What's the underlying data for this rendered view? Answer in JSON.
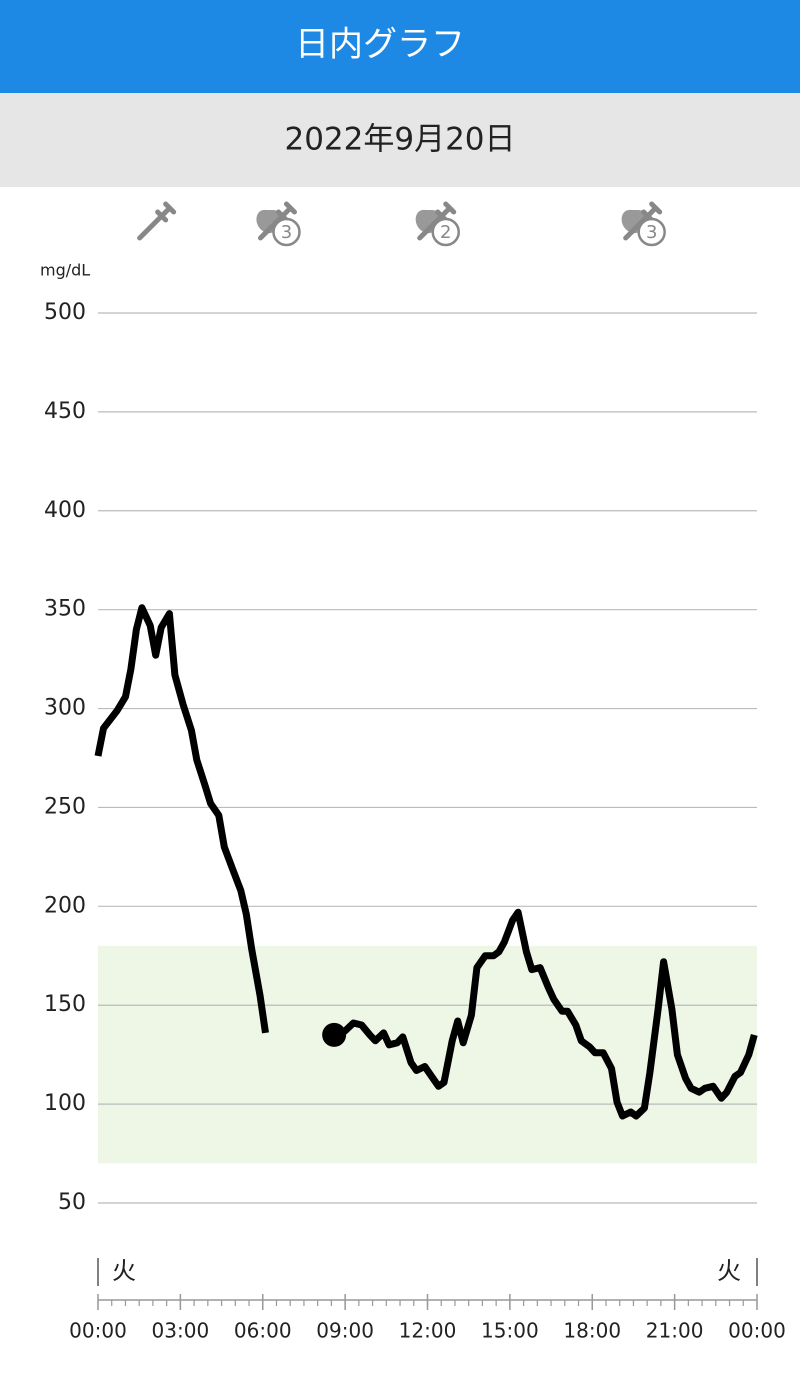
{
  "header": {
    "title": "日内グラフ",
    "date": "2022年9月20日"
  },
  "chart_data": {
    "type": "line",
    "y_label": "mg/dL",
    "xlim": [
      0,
      24
    ],
    "ylim": [
      50,
      500
    ],
    "xticks": [
      {
        "value": 0,
        "label": "00:00"
      },
      {
        "value": 3,
        "label": "03:00"
      },
      {
        "value": 6,
        "label": "06:00"
      },
      {
        "value": 9,
        "label": "09:00"
      },
      {
        "value": 12,
        "label": "12:00"
      },
      {
        "value": 15,
        "label": "15:00"
      },
      {
        "value": 18,
        "label": "18:00"
      },
      {
        "value": 21,
        "label": "21:00"
      },
      {
        "value": 24,
        "label": "00:00"
      }
    ],
    "yticks": [
      50,
      100,
      150,
      200,
      250,
      300,
      350,
      400,
      450,
      500
    ],
    "grid": true,
    "target_range": [
      70,
      180
    ],
    "target_color": "#eef6e6",
    "series": [
      {
        "color": "#000000",
        "x": [
          0,
          0.2,
          0.7,
          1.0,
          1.2,
          1.4,
          1.6,
          1.9,
          2.1,
          2.3,
          2.6,
          2.8,
          3.1,
          3.4,
          3.6,
          3.9,
          4.1,
          4.4,
          4.6,
          4.9,
          5.2,
          5.4,
          5.6,
          5.9,
          6.1,
          null,
          8.6,
          9.0,
          9.3,
          9.6,
          9.9,
          10.1,
          10.4,
          10.6,
          10.9,
          11.1,
          11.4,
          11.6,
          11.9,
          12.1,
          12.4,
          12.6,
          12.9,
          13.1,
          13.3,
          13.6,
          13.8,
          14.1,
          14.4,
          14.6,
          14.8,
          15.1,
          15.3,
          15.6,
          15.8,
          16.1,
          16.4,
          16.6,
          16.9,
          17.1,
          17.4,
          17.6,
          17.9,
          18.1,
          18.4,
          18.7,
          18.9,
          19.1,
          19.4,
          19.6,
          19.9,
          20.1,
          20.4,
          20.6,
          20.9,
          21.1,
          21.4,
          21.6,
          21.9,
          22.1,
          22.4,
          22.7,
          22.9,
          23.2,
          23.4,
          23.7,
          23.9
        ],
        "values": [
          276,
          290,
          299,
          306,
          320,
          340,
          351,
          342,
          327,
          341,
          348,
          317,
          302,
          289,
          274,
          261,
          252,
          246,
          230,
          219,
          208,
          196,
          178,
          155,
          136,
          null,
          135,
          137,
          141,
          140,
          135,
          132,
          136,
          130,
          131,
          134,
          121,
          117,
          119,
          115,
          109,
          111,
          132,
          142,
          131,
          145,
          169,
          175,
          175,
          177,
          182,
          193,
          197,
          177,
          168,
          169,
          159,
          153,
          147,
          147,
          140,
          132,
          129,
          126,
          126,
          118,
          101,
          94,
          96,
          94,
          98,
          116,
          148,
          172,
          148,
          125,
          113,
          108,
          106,
          108,
          109,
          103,
          106,
          114,
          116,
          125,
          135
        ]
      }
    ],
    "start_marker": {
      "x": 8.6,
      "y": 135
    },
    "day_labels": [
      {
        "x": 0,
        "label": "火"
      },
      {
        "x": 24,
        "label": "火"
      }
    ],
    "events": [
      {
        "x": 2.1
      },
      {
        "x": 6.5,
        "label": "3"
      },
      {
        "x": 12.3,
        "label": "2"
      },
      {
        "x": 19.8,
        "label": "3"
      }
    ]
  }
}
